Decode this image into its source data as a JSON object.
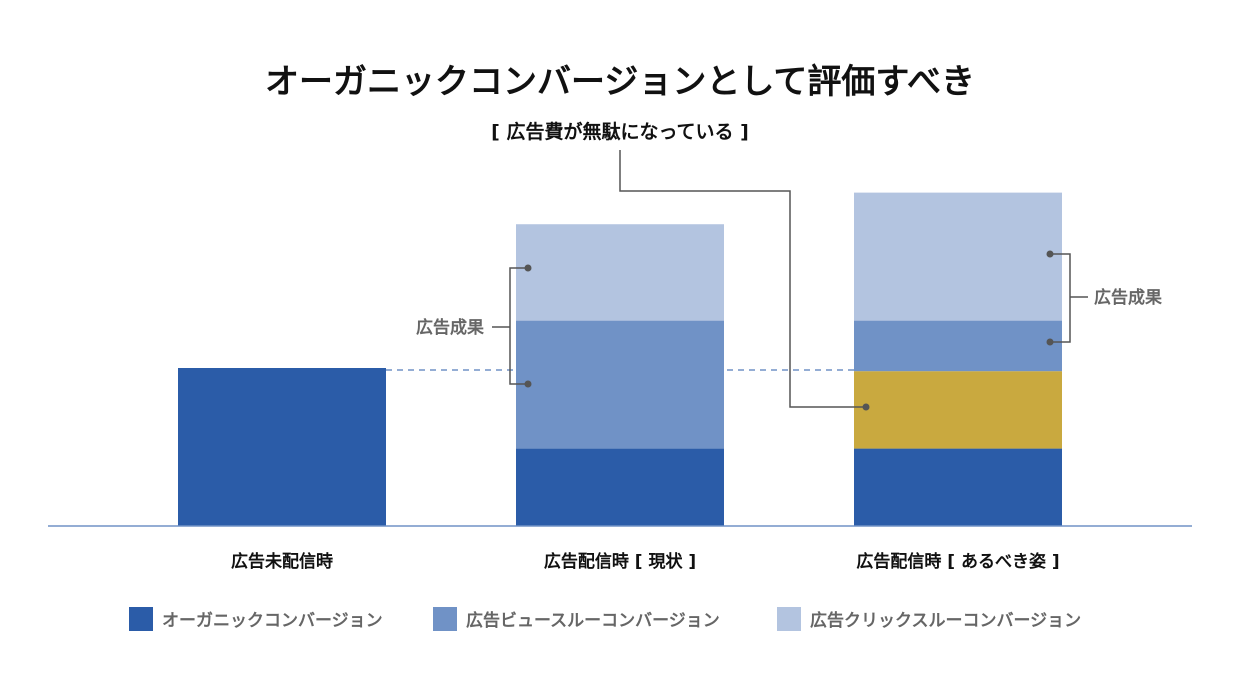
{
  "chart_data": {
    "type": "bar",
    "stacked": true,
    "title": "オーガニックコンバージョンとして評価すべき",
    "xlabel": "",
    "ylabel": "",
    "ylim": [
      0,
      215
    ],
    "grid": false,
    "categories": [
      "広告未配信時",
      "広告配信時 [ 現状 ]",
      "広告配信時 [ あるべき姿 ]"
    ],
    "series": [
      {
        "name": "オーガニックコンバージョン",
        "color": "#2b5ca8",
        "values": [
          100,
          49,
          49
        ],
        "in_legend": true
      },
      {
        "name": "",
        "color": "#c9a93f",
        "values": [
          0,
          0,
          49
        ],
        "in_legend": false
      },
      {
        "name": "広告ビュースルーコンバージョン",
        "color": "#7092c6",
        "values": [
          0,
          81,
          32
        ],
        "in_legend": true
      },
      {
        "name": "広告クリックスルーコンバージョン",
        "color": "#b3c4e0",
        "values": [
          0,
          61,
          81
        ],
        "in_legend": true
      }
    ],
    "reference_line": {
      "value": 100,
      "style": "dashed",
      "color": "#7092c6"
    },
    "annotations": {
      "wasted": "[ 広告費が無駄になっている ]",
      "ad_effect_current": "広告成果",
      "ad_effect_ideal": "広告成果"
    },
    "legend_position": "bottom"
  }
}
